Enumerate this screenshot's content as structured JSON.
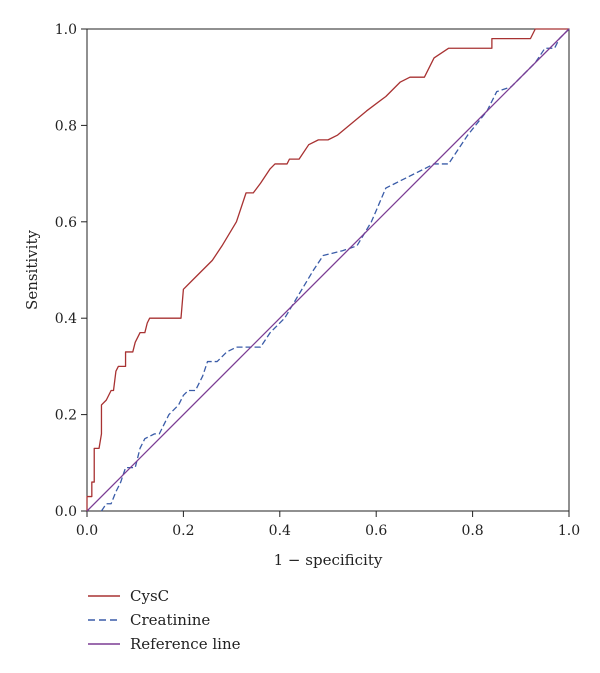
{
  "chart_data": {
    "type": "line",
    "title": "",
    "xlabel": "1 − specificity",
    "ylabel": "Sensitivity",
    "xlim": [
      0,
      1
    ],
    "ylim": [
      0,
      1
    ],
    "xticks": [
      "0.0",
      "0.2",
      "0.4",
      "0.6",
      "0.8",
      "1.0"
    ],
    "yticks": [
      "0.0",
      "0.2",
      "0.4",
      "0.6",
      "0.8",
      "1.0"
    ],
    "grid": false,
    "legend_position": "bottom-left",
    "series": [
      {
        "name": "CysC",
        "color": "#a83232",
        "dash": "solid",
        "points": [
          [
            0,
            0
          ],
          [
            0,
            0.03
          ],
          [
            0.01,
            0.03
          ],
          [
            0.01,
            0.06
          ],
          [
            0.015,
            0.06
          ],
          [
            0.015,
            0.13
          ],
          [
            0.025,
            0.13
          ],
          [
            0.03,
            0.16
          ],
          [
            0.03,
            0.22
          ],
          [
            0.04,
            0.23
          ],
          [
            0.05,
            0.25
          ],
          [
            0.055,
            0.25
          ],
          [
            0.06,
            0.29
          ],
          [
            0.065,
            0.3
          ],
          [
            0.075,
            0.3
          ],
          [
            0.08,
            0.3
          ],
          [
            0.08,
            0.33
          ],
          [
            0.09,
            0.33
          ],
          [
            0.095,
            0.33
          ],
          [
            0.1,
            0.35
          ],
          [
            0.11,
            0.37
          ],
          [
            0.12,
            0.37
          ],
          [
            0.125,
            0.39
          ],
          [
            0.13,
            0.4
          ],
          [
            0.19,
            0.4
          ],
          [
            0.195,
            0.4
          ],
          [
            0.2,
            0.46
          ],
          [
            0.22,
            0.48
          ],
          [
            0.26,
            0.52
          ],
          [
            0.28,
            0.55
          ],
          [
            0.31,
            0.6
          ],
          [
            0.33,
            0.66
          ],
          [
            0.345,
            0.66
          ],
          [
            0.36,
            0.68
          ],
          [
            0.38,
            0.71
          ],
          [
            0.39,
            0.72
          ],
          [
            0.415,
            0.72
          ],
          [
            0.42,
            0.73
          ],
          [
            0.44,
            0.73
          ],
          [
            0.46,
            0.76
          ],
          [
            0.48,
            0.77
          ],
          [
            0.5,
            0.77
          ],
          [
            0.52,
            0.78
          ],
          [
            0.58,
            0.83
          ],
          [
            0.62,
            0.86
          ],
          [
            0.65,
            0.89
          ],
          [
            0.67,
            0.9
          ],
          [
            0.7,
            0.9
          ],
          [
            0.72,
            0.94
          ],
          [
            0.75,
            0.96
          ],
          [
            0.83,
            0.96
          ],
          [
            0.84,
            0.96
          ],
          [
            0.84,
            0.98
          ],
          [
            0.92,
            0.98
          ],
          [
            0.93,
            1
          ],
          [
            1,
            1
          ]
        ]
      },
      {
        "name": "Creatinine",
        "color": "#3a5ca8",
        "dash": "dashed",
        "points": [
          [
            0.03,
            0
          ],
          [
            0.04,
            0.015
          ],
          [
            0.05,
            0.015
          ],
          [
            0.06,
            0.04
          ],
          [
            0.07,
            0.06
          ],
          [
            0.08,
            0.09
          ],
          [
            0.1,
            0.09
          ],
          [
            0.11,
            0.13
          ],
          [
            0.12,
            0.15
          ],
          [
            0.14,
            0.16
          ],
          [
            0.15,
            0.16
          ],
          [
            0.17,
            0.2
          ],
          [
            0.19,
            0.22
          ],
          [
            0.2,
            0.24
          ],
          [
            0.21,
            0.25
          ],
          [
            0.225,
            0.25
          ],
          [
            0.24,
            0.28
          ],
          [
            0.25,
            0.31
          ],
          [
            0.27,
            0.31
          ],
          [
            0.29,
            0.33
          ],
          [
            0.31,
            0.34
          ],
          [
            0.35,
            0.34
          ],
          [
            0.36,
            0.34
          ],
          [
            0.38,
            0.37
          ],
          [
            0.41,
            0.4
          ],
          [
            0.44,
            0.45
          ],
          [
            0.47,
            0.5
          ],
          [
            0.49,
            0.53
          ],
          [
            0.53,
            0.54
          ],
          [
            0.56,
            0.55
          ],
          [
            0.59,
            0.6
          ],
          [
            0.62,
            0.67
          ],
          [
            0.64,
            0.68
          ],
          [
            0.66,
            0.69
          ],
          [
            0.7,
            0.71
          ],
          [
            0.72,
            0.72
          ],
          [
            0.75,
            0.72
          ],
          [
            0.79,
            0.78
          ],
          [
            0.83,
            0.83
          ],
          [
            0.85,
            0.87
          ],
          [
            0.88,
            0.88
          ],
          [
            0.91,
            0.91
          ],
          [
            0.93,
            0.93
          ],
          [
            0.95,
            0.96
          ],
          [
            0.97,
            0.96
          ],
          [
            0.98,
            0.98
          ],
          [
            0.99,
            0.99
          ],
          [
            1,
            1
          ]
        ]
      },
      {
        "name": "Reference line",
        "color": "#7b3c94",
        "dash": "solid",
        "points": [
          [
            0,
            0
          ],
          [
            1,
            1
          ]
        ]
      }
    ]
  }
}
